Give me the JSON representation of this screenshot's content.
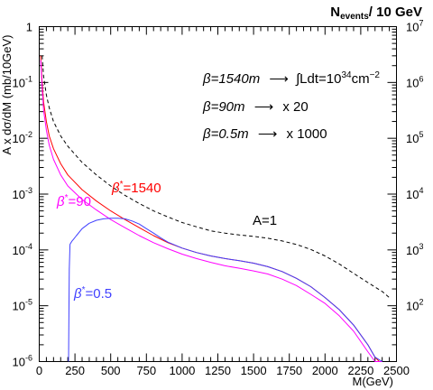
{
  "chart_data": {
    "type": "line",
    "title": "",
    "xlabel": "M(GeV)",
    "ylabel": "A x dσ/dM (mb/10GeV)",
    "y2label": "N_events / 10 GeV",
    "y2label_main": "N",
    "y2label_sub": "events",
    "y2label_rest": "/ 10 GeV",
    "xlim": [
      0,
      2500
    ],
    "ylim": [
      1e-06,
      1
    ],
    "ylog": true,
    "y2lim": [
      10,
      10000000.0
    ],
    "y2log": true,
    "grid": false,
    "x_ticks": [
      "0",
      "250",
      "500",
      "750",
      "1000",
      "1250",
      "1500",
      "1750",
      "2000",
      "2250",
      "2500"
    ],
    "x_tick_values": [
      0,
      250,
      500,
      750,
      1000,
      1250,
      1500,
      1750,
      2000,
      2250,
      2500
    ],
    "y_tick_values": [
      1,
      0.1,
      0.01,
      0.001,
      0.0001,
      1e-05,
      1e-06
    ],
    "y_tick_mantissa": [
      "1",
      "10",
      "10",
      "10",
      "10",
      "10",
      "10"
    ],
    "y_tick_exponent": [
      "",
      "-1",
      "-2",
      "-3",
      "-4",
      "-5",
      "-6"
    ],
    "y2_tick_values": [
      10000000,
      1000000,
      100000,
      10000,
      1000,
      100
    ],
    "y2_tick_mantissa": [
      "10",
      "10",
      "10",
      "10",
      "10",
      "10"
    ],
    "y2_tick_exponent": [
      "7",
      "6",
      "5",
      "4",
      "3",
      "2"
    ],
    "annotations": [
      {
        "text": "β=1540m  ⟶ ∫Ldt=10³⁴cm⁻²",
        "parts": [
          "β=1540m",
          "⟶",
          "∫Ldt=10",
          "34",
          "cm",
          "−2"
        ]
      },
      {
        "text": "β=90m  ⟶  x 20",
        "parts": [
          "β=90m",
          "⟶",
          "x 20"
        ]
      },
      {
        "text": "β=0.5m  ⟶  x 1000",
        "parts": [
          "β=0.5m",
          "⟶",
          "x 1000"
        ]
      }
    ],
    "series": [
      {
        "name": "A=1",
        "label_parts": [
          "A=1"
        ],
        "color": "#000000",
        "dashed": true,
        "x": [
          20,
          30,
          50,
          70,
          100,
          150,
          200,
          300,
          400,
          500,
          600,
          700,
          800,
          900,
          1000,
          1100,
          1200,
          1300,
          1400,
          1500,
          1600,
          1700,
          1800,
          1900,
          2000,
          2100,
          2200,
          2300,
          2400,
          2450
        ],
        "y": [
          0.3,
          0.13,
          0.06,
          0.035,
          0.02,
          0.011,
          0.0072,
          0.0037,
          0.0022,
          0.0014,
          0.00095,
          0.00068,
          0.0005,
          0.00039,
          0.00031,
          0.00026,
          0.00022,
          0.0002,
          0.000185,
          0.000175,
          0.000162,
          0.000145,
          0.000125,
          0.000102,
          7.8e-05,
          5.6e-05,
          3.8e-05,
          2.6e-05,
          1.8e-05,
          1.4e-05
        ]
      },
      {
        "name": "β*=1540",
        "label_parts": [
          "β",
          "*",
          "=1540"
        ],
        "color": "#ff0000",
        "dashed": false,
        "x": [
          10,
          20,
          30,
          50,
          70,
          100,
          150,
          200,
          300,
          400,
          500,
          600,
          700,
          800,
          900,
          1000,
          1100,
          1200,
          1300,
          1400,
          1500,
          1600,
          1700,
          1800,
          1900,
          2000,
          2100,
          2200,
          2300,
          2350,
          2380,
          2400
        ],
        "y": [
          0.3,
          0.1,
          0.045,
          0.02,
          0.011,
          0.0065,
          0.0035,
          0.0022,
          0.0012,
          0.00075,
          0.0005,
          0.00035,
          0.00025,
          0.00018,
          0.000135,
          0.000108,
          9e-05,
          7.8e-05,
          7e-05,
          6.4e-05,
          5.8e-05,
          5e-05,
          4.1e-05,
          3.1e-05,
          2.2e-05,
          1.4e-05,
          8.5e-06,
          4.5e-06,
          2e-06,
          1.2e-06,
          8e-07,
          5.77e-07
        ]
      },
      {
        "name": "β*=90",
        "label_parts": [
          "β",
          "*",
          "=90"
        ],
        "color": "#ff00ff",
        "dashed": false,
        "x": [
          10,
          20,
          30,
          50,
          70,
          100,
          150,
          200,
          300,
          400,
          500,
          600,
          700,
          800,
          900,
          1000,
          1100,
          1200,
          1300,
          1400,
          1500,
          1600,
          1700,
          1800,
          1900,
          2000,
          2100,
          2200,
          2300,
          2350,
          2400
        ],
        "y": [
          0.25,
          0.08,
          0.032,
          0.014,
          0.0075,
          0.0042,
          0.0022,
          0.0014,
          0.0008,
          0.00052,
          0.00035,
          0.00025,
          0.00018,
          0.000135,
          0.000105,
          8.4e-05,
          7e-05,
          6e-05,
          5.2e-05,
          4.7e-05,
          4.2e-05,
          3.7e-05,
          3e-05,
          2.3e-05,
          1.6e-05,
          1.1e-05,
          6.6e-06,
          3.5e-06,
          1.5e-06,
          9e-07,
          5.77e-07
        ]
      },
      {
        "name": "β*=0.5",
        "label_parts": [
          "β",
          "*",
          "=0.5"
        ],
        "color": "#4040ff",
        "dashed": false,
        "x": [
          205,
          207,
          210,
          215,
          222,
          230,
          240,
          260,
          300,
          350,
          400,
          450,
          500,
          550,
          600,
          650,
          700,
          750,
          800,
          850,
          900,
          1000,
          1100,
          1200,
          1300,
          1400,
          1500,
          1600,
          1700,
          1800,
          1900,
          2000,
          2100,
          2200,
          2300,
          2350,
          2400
        ],
        "y": [
          1e-06,
          4.5e-06,
          4.5e-05,
          0.000125,
          0.000135,
          0.000145,
          0.000155,
          0.00018,
          0.00024,
          0.0003,
          0.00034,
          0.00036,
          0.00037,
          0.00037,
          0.00036,
          0.00033,
          0.00029,
          0.00024,
          0.0002,
          0.000165,
          0.000138,
          0.000108,
          9e-05,
          7.8e-05,
          7e-05,
          6.4e-05,
          5.8e-05,
          5e-05,
          4.1e-05,
          3.1e-05,
          2.2e-05,
          1.4e-05,
          8.5e-06,
          4.5e-06,
          2e-06,
          1.2e-06,
          5.77e-07
        ]
      }
    ]
  }
}
